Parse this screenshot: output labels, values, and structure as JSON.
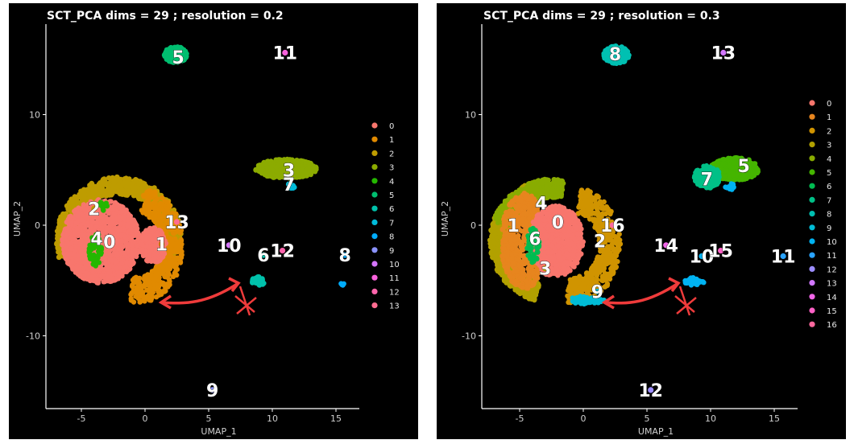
{
  "chart_data": [
    {
      "type": "scatter",
      "title": "SCT_PCA dims =  29 ; resolution = 0.2",
      "xlabel": "UMAP_1",
      "ylabel": "UMAP_2",
      "xlim": [
        -8,
        17
      ],
      "ylim": [
        -17,
        17.5
      ],
      "xticks": [
        -5,
        0,
        5,
        10,
        15
      ],
      "yticks": [
        -10,
        0,
        10
      ],
      "legend": [
        "0",
        "1",
        "2",
        "3",
        "4",
        "5",
        "6",
        "7",
        "8",
        "9",
        "10",
        "11",
        "12",
        "13"
      ],
      "legend_position": "right",
      "clusters": [
        {
          "label": "0",
          "x": -2.8,
          "y": -1.5
        },
        {
          "label": "1",
          "x": 1.3,
          "y": -1.7
        },
        {
          "label": "2",
          "x": -4.0,
          "y": 1.5
        },
        {
          "label": "3",
          "x": 11.3,
          "y": 5.0
        },
        {
          "label": "4",
          "x": -3.8,
          "y": -1.2
        },
        {
          "label": "5",
          "x": 2.6,
          "y": 15.2
        },
        {
          "label": "6",
          "x": 9.3,
          "y": -2.7
        },
        {
          "label": "7",
          "x": 11.3,
          "y": 3.7
        },
        {
          "label": "8",
          "x": 15.7,
          "y": -2.7
        },
        {
          "label": "9",
          "x": 5.3,
          "y": -14.9
        },
        {
          "label": "10",
          "x": 6.6,
          "y": -1.8
        },
        {
          "label": "11",
          "x": 11.0,
          "y": 15.6
        },
        {
          "label": "12",
          "x": 10.8,
          "y": -2.3
        },
        {
          "label": "13",
          "x": 2.5,
          "y": 0.3
        }
      ]
    },
    {
      "type": "scatter",
      "title": "SCT_PCA dims =  29 ; resolution = 0.3",
      "xlabel": "UMAP_1",
      "ylabel": "UMAP_2",
      "xlim": [
        -8,
        17
      ],
      "ylim": [
        -17,
        17.5
      ],
      "xticks": [
        -5,
        0,
        5,
        10,
        15
      ],
      "yticks": [
        -10,
        0,
        10
      ],
      "legend": [
        "0",
        "1",
        "2",
        "3",
        "4",
        "5",
        "6",
        "7",
        "8",
        "9",
        "10",
        "11",
        "12",
        "13",
        "14",
        "15",
        "16"
      ],
      "legend_position": "right",
      "clusters": [
        {
          "label": "0",
          "x": -2.0,
          "y": 0.3
        },
        {
          "label": "1",
          "x": -5.5,
          "y": 0.0
        },
        {
          "label": "2",
          "x": 1.3,
          "y": -1.4
        },
        {
          "label": "3",
          "x": -3.0,
          "y": -3.9
        },
        {
          "label": "4",
          "x": -3.3,
          "y": 2.0
        },
        {
          "label": "5",
          "x": 12.6,
          "y": 5.4
        },
        {
          "label": "6",
          "x": -3.8,
          "y": -1.2
        },
        {
          "label": "7",
          "x": 9.7,
          "y": 4.2
        },
        {
          "label": "8",
          "x": 2.5,
          "y": 15.5
        },
        {
          "label": "9",
          "x": 1.1,
          "y": -6.0
        },
        {
          "label": "10",
          "x": 9.3,
          "y": -2.8
        },
        {
          "label": "11",
          "x": 15.7,
          "y": -2.8
        },
        {
          "label": "12",
          "x": 5.3,
          "y": -14.9
        },
        {
          "label": "13",
          "x": 11.0,
          "y": 15.6
        },
        {
          "label": "14",
          "x": 6.5,
          "y": -1.8
        },
        {
          "label": "15",
          "x": 10.8,
          "y": -2.3
        },
        {
          "label": "16",
          "x": 2.3,
          "y": 0.0
        }
      ]
    }
  ]
}
